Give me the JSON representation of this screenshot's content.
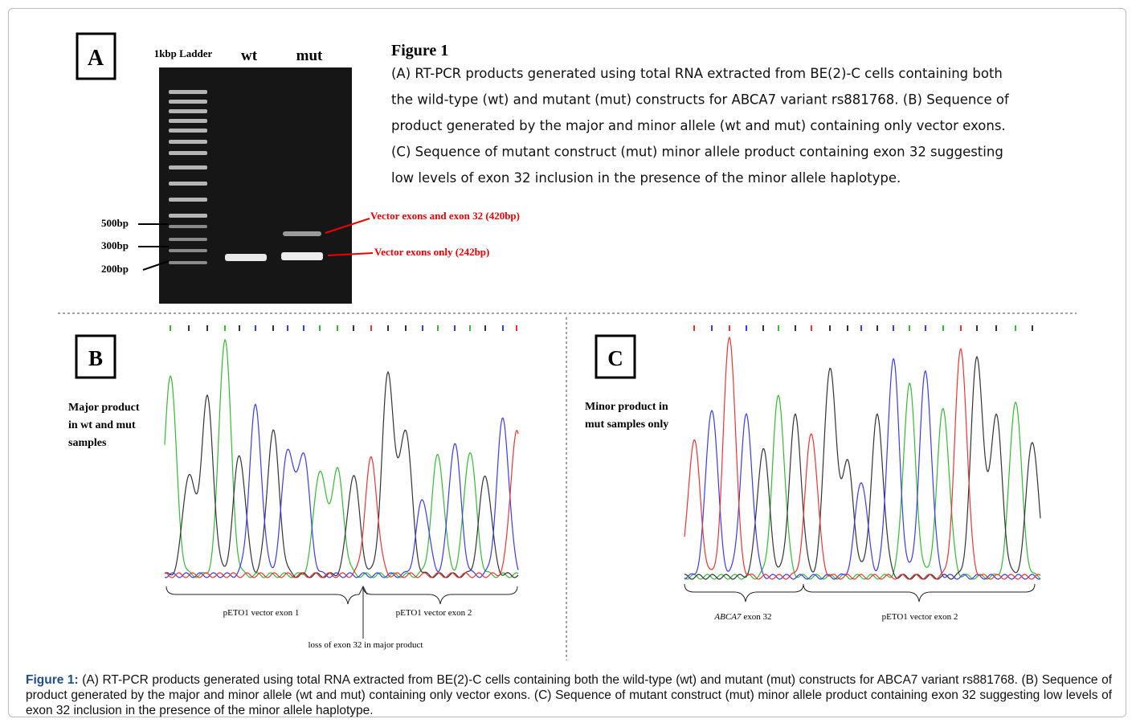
{
  "panel_a": {
    "label": "A",
    "ladder_label": "1kbp Ladder",
    "lanes": [
      "wt",
      "mut"
    ],
    "size_markers": [
      "500bp",
      "300bp",
      "200bp"
    ],
    "band_labels": [
      "Vector exons and exon 32 (420bp)",
      "Vector exons only (242bp)"
    ]
  },
  "figure_text": {
    "title": "Figure 1",
    "lines": [
      "(A) RT-PCR products generated using total RNA extracted from BE(2)-C cells containing both",
      "the wild-type (wt) and mutant (mut) constructs for ABCA7 variant rs881768. (B) Sequence of",
      "product generated by the major and minor allele (wt and mut) containing only vector exons.",
      "(C) Sequence of mutant construct (mut) minor allele product containing exon 32 suggesting",
      "low levels of exon 32 inclusion in the presence of the minor allele haplotype."
    ]
  },
  "panel_b": {
    "label": "B",
    "description": [
      "Major product",
      "in wt and mut",
      "samples"
    ],
    "regions": [
      "pETO1 vector exon 1",
      "pETO1 vector exon 2"
    ],
    "annotation": "loss of exon 32 in major product"
  },
  "panel_c": {
    "label": "C",
    "description": [
      "Minor product in",
      "mut samples only"
    ],
    "region_gene": "ABCA7",
    "region_exon": "exon 32",
    "regions": [
      "pETO1 vector exon 2"
    ]
  },
  "caption": {
    "label": "Figure 1:",
    "text": "(A) RT-PCR products generated using total RNA extracted from BE(2)-C cells containing both the wild-type (wt) and mutant (mut) constructs for ABCA7 variant rs881768. (B) Sequence of product generated by the major and minor allele (wt and mut) containing only vector exons. (C) Sequence of mutant construct (mut) minor allele product containing exon 32 suggesting low levels of exon 32 inclusion in the presence of the minor allele haplotype."
  }
}
